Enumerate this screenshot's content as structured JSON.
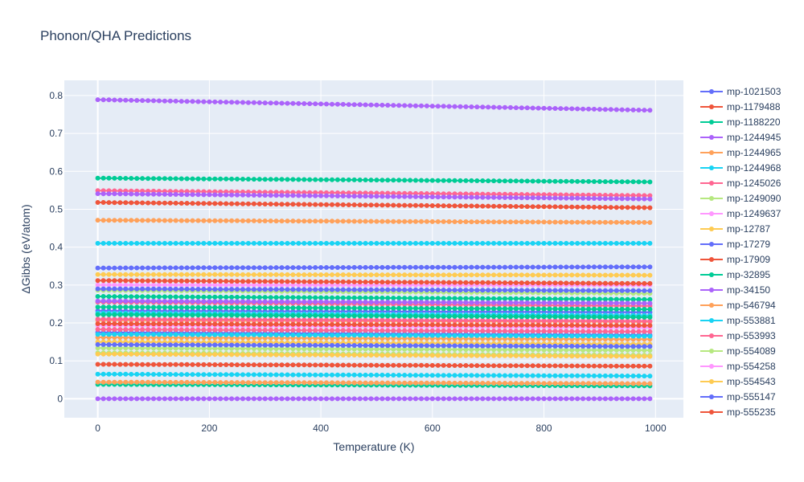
{
  "chart_data": {
    "type": "scatter",
    "title": "Phonon/QHA Predictions",
    "xlabel": "Temperature (K)",
    "ylabel": "ΔGibbs (eV/atom)",
    "xlim": [
      -60,
      1050
    ],
    "ylim": [
      -0.05,
      0.84
    ],
    "x_ticks": [
      0,
      200,
      400,
      600,
      800,
      1000
    ],
    "y_ticks": [
      0,
      0.1,
      0.2,
      0.3,
      0.4,
      0.5,
      0.6,
      0.7,
      0.8
    ],
    "x_tick_labels": [
      "0",
      "200",
      "400",
      "600",
      "800",
      "1000"
    ],
    "y_tick_labels": [
      "0",
      "0.1",
      "0.2",
      "0.3",
      "0.4",
      "0.5",
      "0.6",
      "0.7",
      "0.8"
    ],
    "x_start": 0,
    "x_step": 10,
    "x_count": 100,
    "grid": true,
    "legend_position": "right",
    "series": [
      {
        "name": "mp-1021503",
        "color": "#636efa",
        "y_start": 0.345,
        "y_end": 0.348
      },
      {
        "name": "mp-1179488",
        "color": "#ef553b",
        "y_start": 0.518,
        "y_end": 0.504
      },
      {
        "name": "mp-1188220",
        "color": "#00cc96",
        "y_start": 0.582,
        "y_end": 0.572
      },
      {
        "name": "mp-1244945",
        "color": "#ab63fa",
        "y_start": 0.789,
        "y_end": 0.761
      },
      {
        "name": "mp-1244965",
        "color": "#ffa15a",
        "y_start": 0.471,
        "y_end": 0.465
      },
      {
        "name": "mp-1244968",
        "color": "#19d3f3",
        "y_start": 0.41,
        "y_end": 0.41
      },
      {
        "name": "mp-1245026",
        "color": "#ff6692",
        "y_start": 0.549,
        "y_end": 0.536
      },
      {
        "name": "mp-1249090",
        "color": "#b6e880",
        "y_start": 0.286,
        "y_end": 0.278
      },
      {
        "name": "mp-1249637",
        "color": "#ff97ff",
        "y_start": 0.3,
        "y_end": 0.3
      },
      {
        "name": "mp-12787",
        "color": "#fecb52",
        "y_start": 0.328,
        "y_end": 0.326
      },
      {
        "name": "mp-17279",
        "color": "#636efa",
        "y_start": 0.232,
        "y_end": 0.228
      },
      {
        "name": "mp-17909",
        "color": "#ef553b",
        "y_start": 0.312,
        "y_end": 0.304
      },
      {
        "name": "mp-32895",
        "color": "#00cc96",
        "y_start": 0.27,
        "y_end": 0.262
      },
      {
        "name": "mp-34150",
        "color": "#ab63fa",
        "y_start": 0.541,
        "y_end": 0.527
      },
      {
        "name": "mp-546794",
        "color": "#ffa15a",
        "y_start": 0.207,
        "y_end": 0.203
      },
      {
        "name": "mp-553881",
        "color": "#19d3f3",
        "y_start": 0.065,
        "y_end": 0.06
      },
      {
        "name": "mp-553993",
        "color": "#ff6692",
        "y_start": 0.255,
        "y_end": 0.245
      },
      {
        "name": "mp-554089",
        "color": "#b6e880",
        "y_start": 0.121,
        "y_end": 0.115
      },
      {
        "name": "mp-554258",
        "color": "#ff97ff",
        "y_start": 0.194,
        "y_end": 0.188
      },
      {
        "name": "mp-554543",
        "color": "#fecb52",
        "y_start": 0.15,
        "y_end": 0.144
      },
      {
        "name": "mp-555147",
        "color": "#636efa",
        "y_start": 0.175,
        "y_end": 0.168
      },
      {
        "name": "mp-555235",
        "color": "#ef553b",
        "y_start": 0.091,
        "y_end": 0.086
      },
      {
        "name": "",
        "color": "#00cc96",
        "y_start": 0.242,
        "y_end": 0.236
      },
      {
        "name": "",
        "color": "#ab63fa",
        "y_start": 0.0,
        "y_end": 0.0
      },
      {
        "name": "",
        "color": "#ffa15a",
        "y_start": 0.162,
        "y_end": 0.157
      },
      {
        "name": "",
        "color": "#19d3f3",
        "y_start": 0.226,
        "y_end": 0.22
      },
      {
        "name": "",
        "color": "#ff6692",
        "y_start": 0.183,
        "y_end": 0.177
      },
      {
        "name": "",
        "color": "#b6e880",
        "y_start": 0.134,
        "y_end": 0.128
      },
      {
        "name": "",
        "color": "#fecb52",
        "y_start": 0.118,
        "y_end": 0.112
      },
      {
        "name": "",
        "color": "#636efa",
        "y_start": 0.29,
        "y_end": 0.285
      },
      {
        "name": "",
        "color": "#ef553b",
        "y_start": 0.198,
        "y_end": 0.193
      },
      {
        "name": "",
        "color": "#00cc96",
        "y_start": 0.038,
        "y_end": 0.034
      },
      {
        "name": "",
        "color": "#ab63fa",
        "y_start": 0.258,
        "y_end": 0.252
      },
      {
        "name": "",
        "color": "#ffa15a",
        "y_start": 0.044,
        "y_end": 0.04
      },
      {
        "name": "",
        "color": "#19d3f3",
        "y_start": 0.17,
        "y_end": 0.165
      },
      {
        "name": "",
        "color": "#ff6692",
        "y_start": 0.21,
        "y_end": 0.205
      },
      {
        "name": "",
        "color": "#00cc96",
        "y_start": 0.222,
        "y_end": 0.215
      },
      {
        "name": "",
        "color": "#636efa",
        "y_start": 0.143,
        "y_end": 0.138
      }
    ]
  }
}
